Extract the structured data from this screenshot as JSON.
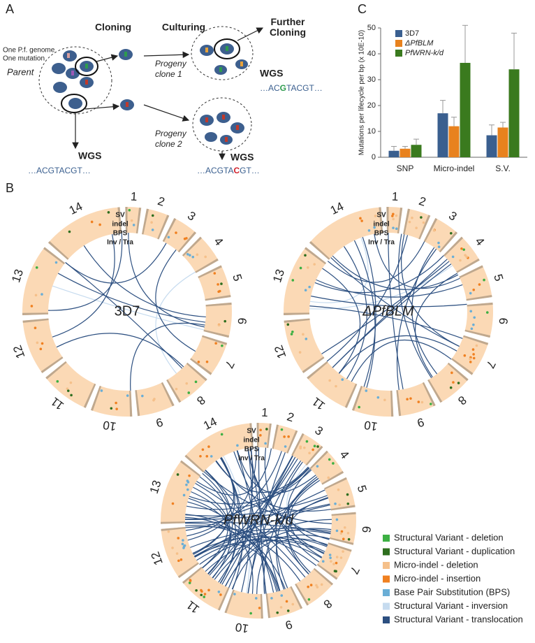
{
  "panel_a": {
    "label": "A",
    "headers": [
      "Cloning",
      "Culturing",
      "Further Cloning"
    ],
    "annotations": [
      "One P.f. genome",
      "One mutation",
      "Parent"
    ],
    "progeny": [
      "Progeny clone 1",
      "Progeny clone 2"
    ],
    "wgs": [
      "WGS",
      "WGS",
      "WGS"
    ],
    "sequence": "…ACGTACGT…",
    "sequence_green": [
      "…AC",
      "G",
      "TACGT…"
    ],
    "sequence_red": [
      "…ACGTA",
      "C",
      "GT…"
    ]
  },
  "panel_b": {
    "label": "B",
    "chromosomes": [
      "1",
      "2",
      "3",
      "4",
      "5",
      "6",
      "7",
      "8",
      "9",
      "10",
      "11",
      "12",
      "13",
      "14"
    ],
    "tracks": [
      {
        "name": "SV",
        "color": "#2e8b22"
      },
      {
        "name": "indel",
        "color": "#e8821e"
      },
      {
        "name": "BPS",
        "color": "#6aaed6"
      },
      {
        "name": "Inv / Tra",
        "color": "#3a64b0"
      }
    ],
    "plots": [
      "3D7",
      "ΔPfBLM",
      "PfWRN-k/d"
    ],
    "legend": [
      {
        "name": "Structural Variant - deletion",
        "color": "#3cb043"
      },
      {
        "name": "Structural Variant - duplication",
        "color": "#2d6e1e"
      },
      {
        "name": "Micro-indel - deletion",
        "color": "#f5c08a"
      },
      {
        "name": "Micro-indel - insertion",
        "color": "#f08020"
      },
      {
        "name": "Base Pair Substitution (BPS)",
        "color": "#6aaed6"
      },
      {
        "name": "Structural Variant - inversion",
        "color": "#c6dbef"
      },
      {
        "name": "Structural Variant - translocation",
        "color": "#2c4f80"
      }
    ]
  },
  "chart_data": {
    "type": "bar",
    "label": "C",
    "ylabel": "Mutations per lifecycle per bp (x 10E-10)",
    "categories": [
      "SNP",
      "Micro-indel",
      "S.V."
    ],
    "series": [
      {
        "name": "3D7",
        "color": "#3a5f8f",
        "values": [
          2.5,
          17,
          8.5
        ],
        "errors": [
          1.7,
          5,
          4
        ]
      },
      {
        "name": "ΔPfBLM",
        "color": "#e8821e",
        "values": [
          3.3,
          12,
          11.5
        ],
        "errors": [
          0.9,
          3.5,
          2
        ]
      },
      {
        "name": "PfWRN-k/d",
        "color": "#3a7a1e",
        "values": [
          4.8,
          36.5,
          34
        ],
        "errors": [
          2.2,
          14.5,
          14
        ]
      }
    ],
    "ylim": [
      0,
      50
    ],
    "yticks": [
      0,
      10,
      20,
      30,
      40,
      50
    ]
  }
}
